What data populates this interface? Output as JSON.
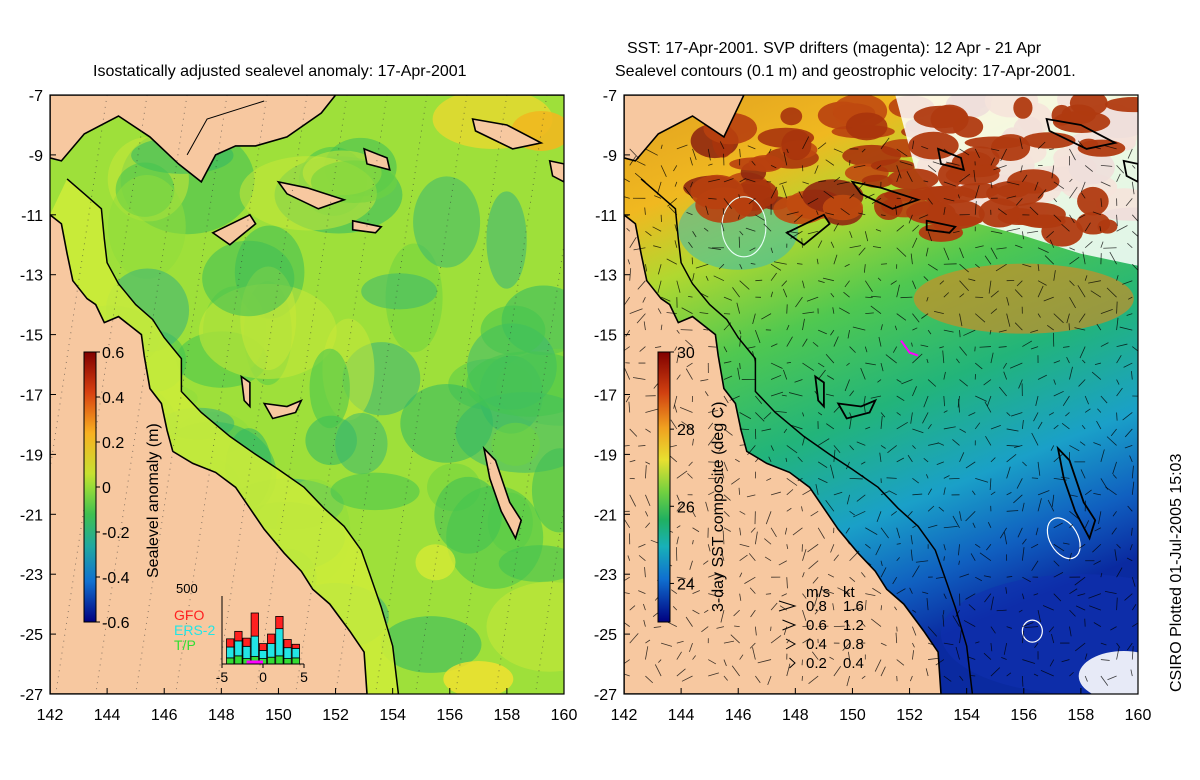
{
  "left_title": "Isostatically adjusted sealevel anomaly: 17-Apr-2001",
  "right_title_line1": "SST: 17-Apr-2001. SVP drifters (magenta): 12 Apr - 21 Apr",
  "right_title_line2": "Sealevel contours (0.1 m) and geostrophic velocity: 17-Apr-2001.",
  "credit": "CSIRO Plotted 01-Jul-2005 15:03",
  "colors": {
    "land": "#f7c8a0",
    "cloud": "#ffffff",
    "coast": "#000000",
    "drifter": "#ff00ff"
  },
  "chart_data": [
    {
      "type": "heatmap",
      "title": "Isostatically adjusted sealevel anomaly: 17-Apr-2001",
      "x_ticks": [
        "142",
        "144",
        "146",
        "148",
        "150",
        "152",
        "154",
        "156",
        "158",
        "160"
      ],
      "y_ticks": [
        "-7",
        "-9",
        "-11",
        "-13",
        "-15",
        "-17",
        "-19",
        "-21",
        "-23",
        "-25",
        "-27"
      ],
      "xlim": [
        142,
        160
      ],
      "ylim": [
        -27,
        -7
      ],
      "colorbar": {
        "label": "Sealevel anomaly (m)",
        "ticks": [
          "0.6",
          "0.4",
          "0.2",
          "0",
          "-0.2",
          "-0.4",
          "-0.6"
        ],
        "range": [
          -0.6,
          0.6
        ]
      },
      "inset_histogram": {
        "ymax_label": "500",
        "x_ticks": [
          "-5",
          "0",
          "5"
        ],
        "legend": [
          {
            "name": "GFO",
            "color": "#ff2020"
          },
          {
            "name": "ERS-2",
            "color": "#22e5e5"
          },
          {
            "name": "T/P",
            "color": "#33dd33"
          }
        ],
        "x": [
          -4,
          -3,
          -2,
          -1,
          0,
          1,
          2,
          3,
          4
        ],
        "series": [
          {
            "name": "T/P",
            "values": [
              45,
              60,
              40,
              55,
              40,
              50,
              60,
              40,
              45
            ]
          },
          {
            "name": "ERS-2",
            "values": [
              80,
              110,
              90,
              150,
              60,
              100,
              200,
              80,
              70
            ]
          },
          {
            "name": "GFO",
            "values": [
              60,
              70,
              60,
              170,
              50,
              70,
              90,
              60,
              30
            ]
          }
        ]
      }
    },
    {
      "type": "heatmap",
      "title": "SST: 17-Apr-2001. SVP drifters (magenta): 12 Apr - 21 Apr",
      "x_ticks": [
        "142",
        "144",
        "146",
        "148",
        "150",
        "152",
        "154",
        "156",
        "158",
        "160"
      ],
      "y_ticks": [
        "-7",
        "-9",
        "-11",
        "-13",
        "-15",
        "-17",
        "-19",
        "-21",
        "-23",
        "-25",
        "-27"
      ],
      "xlim": [
        142,
        160
      ],
      "ylim": [
        -27,
        -7
      ],
      "colorbar": {
        "label": "3-day SST composite (deg C)",
        "ticks": [
          "30",
          "28",
          "26",
          "24"
        ],
        "range": [
          23,
          30
        ]
      },
      "velocity_legend": {
        "header": [
          "m/s",
          "kt"
        ],
        "rows": [
          [
            "0.8",
            "1.6"
          ],
          [
            "0.6",
            "1.2"
          ],
          [
            "0.4",
            "0.8"
          ],
          [
            "0.2",
            "0.4"
          ]
        ]
      }
    }
  ]
}
